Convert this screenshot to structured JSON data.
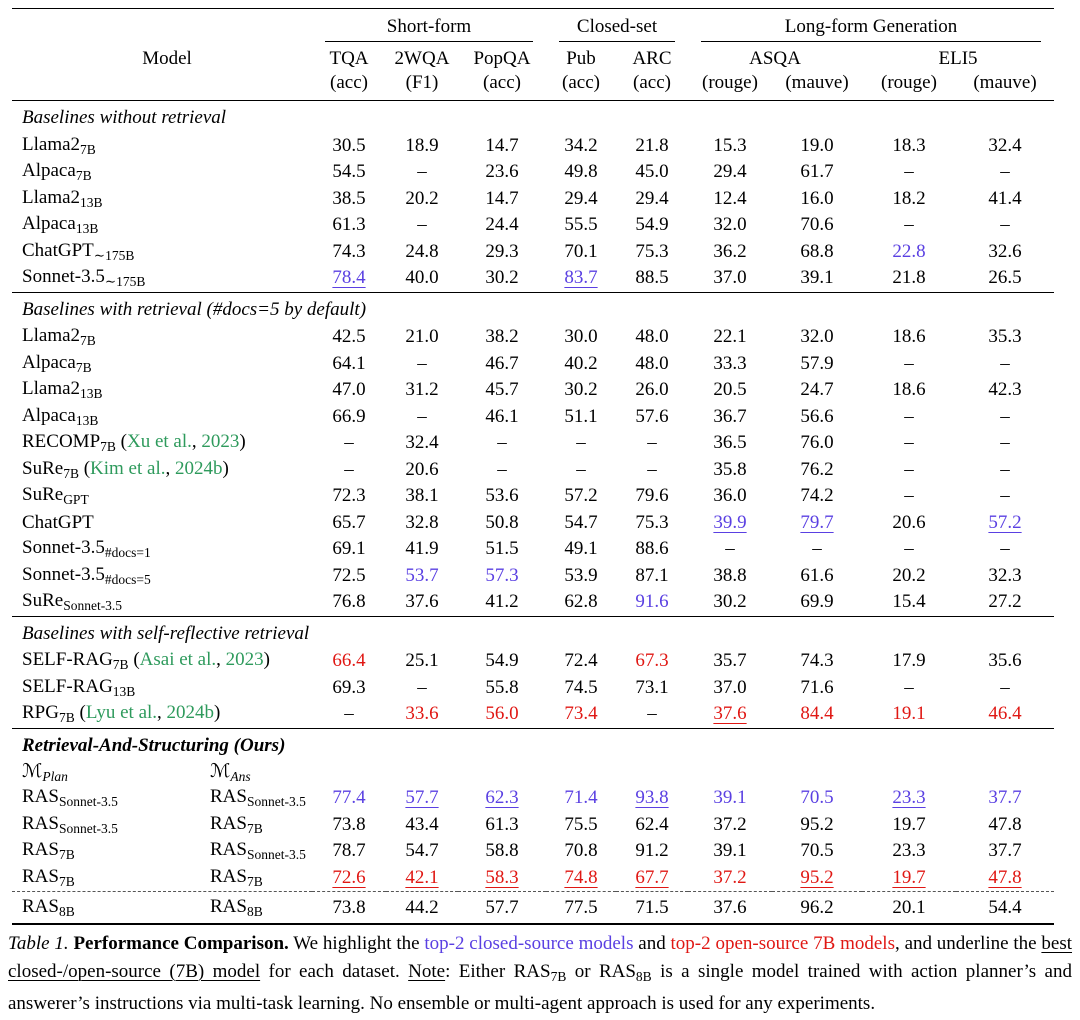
{
  "colors": {
    "top2_closed": "#5a40e2",
    "top2_open": "#e01713",
    "citation": "#2e9a5c"
  },
  "header": {
    "model_label": "Model",
    "groups": [
      {
        "label": "Short-form",
        "span": 3
      },
      {
        "label": "Closed-set",
        "span": 2
      },
      {
        "label": "Long-form Generation",
        "span": 4
      }
    ],
    "columns": [
      {
        "name": "TQA",
        "span": 1,
        "metrics": [
          "(acc)"
        ]
      },
      {
        "name": "2WQA",
        "span": 1,
        "metrics": [
          "(F1)"
        ]
      },
      {
        "name": "PopQA",
        "span": 1,
        "metrics": [
          "(acc)"
        ]
      },
      {
        "name": "Pub",
        "span": 1,
        "metrics": [
          "(acc)"
        ]
      },
      {
        "name": "ARC",
        "span": 1,
        "metrics": [
          "(acc)"
        ]
      },
      {
        "name": "ASQA",
        "span": 2,
        "metrics": [
          "(rouge)",
          "(mauve)"
        ]
      },
      {
        "name": "ELI5",
        "span": 2,
        "metrics": [
          "(rouge)",
          "(mauve)"
        ]
      }
    ]
  },
  "sections": [
    {
      "title": [
        {
          "t": "Baselines without retrieval"
        }
      ],
      "rows": [
        {
          "model": [
            {
              "t": "Llama2"
            },
            {
              "t": "7B",
              "s": "sub"
            }
          ],
          "cells": [
            "30.5",
            "18.9",
            "14.7",
            "34.2",
            "21.8",
            "15.3",
            "19.0",
            "18.3",
            "32.4"
          ]
        },
        {
          "model": [
            {
              "t": "Alpaca"
            },
            {
              "t": "7B",
              "s": "sub"
            }
          ],
          "cells": [
            "54.5",
            "–",
            "23.6",
            "49.8",
            "45.0",
            "29.4",
            "61.7",
            "–",
            "–"
          ]
        },
        {
          "model": [
            {
              "t": "Llama2"
            },
            {
              "t": "13B",
              "s": "sub"
            }
          ],
          "cells": [
            "38.5",
            "20.2",
            "14.7",
            "29.4",
            "29.4",
            "12.4",
            "16.0",
            "18.2",
            "41.4"
          ]
        },
        {
          "model": [
            {
              "t": "Alpaca"
            },
            {
              "t": "13B",
              "s": "sub"
            }
          ],
          "cells": [
            "61.3",
            "–",
            "24.4",
            "55.5",
            "54.9",
            "32.0",
            "70.6",
            "–",
            "–"
          ]
        },
        {
          "model": [
            {
              "t": "ChatGPT"
            },
            {
              "t": "∼175B",
              "s": "sub"
            }
          ],
          "cells": [
            "74.3",
            "24.8",
            "29.3",
            "70.1",
            "75.3",
            "36.2",
            "68.8",
            {
              "v": "22.8",
              "c": "blue"
            },
            "32.6"
          ]
        },
        {
          "model": [
            {
              "t": "Sonnet-3.5"
            },
            {
              "t": "∼175B",
              "s": "sub"
            }
          ],
          "cells": [
            {
              "v": "78.4",
              "c": "blue",
              "u": true
            },
            "40.0",
            "30.2",
            {
              "v": "83.7",
              "c": "blue",
              "u": true
            },
            "88.5",
            "37.0",
            "39.1",
            "21.8",
            "26.5"
          ]
        }
      ]
    },
    {
      "title": [
        {
          "t": "Baselines with retrieval (#docs=5 by default)"
        }
      ],
      "rows": [
        {
          "model": [
            {
              "t": "Llama2"
            },
            {
              "t": "7B",
              "s": "sub"
            }
          ],
          "cells": [
            "42.5",
            "21.0",
            "38.2",
            "30.0",
            "48.0",
            "22.1",
            "32.0",
            "18.6",
            "35.3"
          ]
        },
        {
          "model": [
            {
              "t": "Alpaca"
            },
            {
              "t": "7B",
              "s": "sub"
            }
          ],
          "cells": [
            "64.1",
            "–",
            "46.7",
            "40.2",
            "48.0",
            "33.3",
            "57.9",
            "–",
            "–"
          ]
        },
        {
          "model": [
            {
              "t": "Llama2"
            },
            {
              "t": "13B",
              "s": "sub"
            }
          ],
          "cells": [
            "47.0",
            "31.2",
            "45.7",
            "30.2",
            "26.0",
            "20.5",
            "24.7",
            "18.6",
            "42.3"
          ]
        },
        {
          "model": [
            {
              "t": "Alpaca"
            },
            {
              "t": "13B",
              "s": "sub"
            }
          ],
          "cells": [
            "66.9",
            "–",
            "46.1",
            "51.1",
            "57.6",
            "36.7",
            "56.6",
            "–",
            "–"
          ]
        },
        {
          "model": [
            {
              "t": "RECOMP"
            },
            {
              "t": "7B",
              "s": "sub"
            },
            {
              "t": " ("
            },
            {
              "t": "Xu et al.",
              "s": "green"
            },
            {
              "t": ", "
            },
            {
              "t": "2023",
              "s": "green"
            },
            {
              "t": ")"
            }
          ],
          "cells": [
            "–",
            "32.4",
            "–",
            "–",
            "–",
            "36.5",
            "76.0",
            "–",
            "–"
          ]
        },
        {
          "model": [
            {
              "t": "SuRe"
            },
            {
              "t": "7B",
              "s": "sub"
            },
            {
              "t": " ("
            },
            {
              "t": "Kim et al.",
              "s": "green"
            },
            {
              "t": ", "
            },
            {
              "t": "2024b",
              "s": "green"
            },
            {
              "t": ")"
            }
          ],
          "cells": [
            "–",
            "20.6",
            "–",
            "–",
            "–",
            "35.8",
            "76.2",
            "–",
            "–"
          ]
        },
        {
          "model": [
            {
              "t": "SuRe"
            },
            {
              "t": "GPT",
              "s": "sub"
            }
          ],
          "cells": [
            "72.3",
            "38.1",
            "53.6",
            "57.2",
            "79.6",
            "36.0",
            "74.2",
            "–",
            "–"
          ]
        },
        {
          "model": [
            {
              "t": "ChatGPT"
            }
          ],
          "cells": [
            "65.7",
            "32.8",
            "50.8",
            "54.7",
            "75.3",
            {
              "v": "39.9",
              "c": "blue",
              "u": true
            },
            {
              "v": "79.7",
              "c": "blue",
              "u": true
            },
            "20.6",
            {
              "v": "57.2",
              "c": "blue",
              "u": true
            }
          ]
        },
        {
          "model": [
            {
              "t": "Sonnet-3.5"
            },
            {
              "t": "#docs=1",
              "s": "sub"
            }
          ],
          "cells": [
            "69.1",
            "41.9",
            "51.5",
            "49.1",
            "88.6",
            "–",
            "–",
            "–",
            "–"
          ]
        },
        {
          "model": [
            {
              "t": "Sonnet-3.5"
            },
            {
              "t": "#docs=5",
              "s": "sub"
            }
          ],
          "cells": [
            "72.5",
            {
              "v": "53.7",
              "c": "blue"
            },
            {
              "v": "57.3",
              "c": "blue"
            },
            "53.9",
            "87.1",
            "38.8",
            "61.6",
            "20.2",
            "32.3"
          ]
        },
        {
          "model": [
            {
              "t": "SuRe"
            },
            {
              "t": "Sonnet-3.5",
              "s": "sub"
            }
          ],
          "cells": [
            "76.8",
            "37.6",
            "41.2",
            "62.8",
            {
              "v": "91.6",
              "c": "blue"
            },
            "30.2",
            "69.9",
            "15.4",
            "27.2"
          ]
        }
      ]
    },
    {
      "title": [
        {
          "t": "Baselines with self-reflective retrieval"
        }
      ],
      "rows": [
        {
          "model": [
            {
              "t": "SELF-RAG"
            },
            {
              "t": "7B",
              "s": "sub"
            },
            {
              "t": " ("
            },
            {
              "t": "Asai et al.",
              "s": "green"
            },
            {
              "t": ", "
            },
            {
              "t": "2023",
              "s": "green"
            },
            {
              "t": ")"
            }
          ],
          "cells": [
            {
              "v": "66.4",
              "c": "red"
            },
            "25.1",
            "54.9",
            "72.4",
            {
              "v": "67.3",
              "c": "red"
            },
            "35.7",
            "74.3",
            "17.9",
            "35.6"
          ]
        },
        {
          "model": [
            {
              "t": "SELF-RAG"
            },
            {
              "t": "13B",
              "s": "sub"
            }
          ],
          "cells": [
            "69.3",
            "–",
            "55.8",
            "74.5",
            "73.1",
            "37.0",
            "71.6",
            "–",
            "–"
          ]
        },
        {
          "model": [
            {
              "t": "RPG"
            },
            {
              "t": "7B",
              "s": "sub"
            },
            {
              "t": " ("
            },
            {
              "t": "Lyu et al.",
              "s": "green"
            },
            {
              "t": ", "
            },
            {
              "t": "2024b",
              "s": "green"
            },
            {
              "t": ")"
            }
          ],
          "cells": [
            "–",
            {
              "v": "33.6",
              "c": "red"
            },
            {
              "v": "56.0",
              "c": "red"
            },
            {
              "v": "73.4",
              "c": "red"
            },
            "–",
            {
              "v": "37.6",
              "c": "red",
              "u": true
            },
            {
              "v": "84.4",
              "c": "red"
            },
            {
              "v": "19.1",
              "c": "red"
            },
            {
              "v": "46.4",
              "c": "red"
            }
          ]
        }
      ]
    },
    {
      "title": [
        {
          "t": "Retrieval-And-Structuring (Ours)"
        }
      ],
      "bold": true,
      "col_labels": {
        "plan": [
          {
            "t": "ℳ",
            "s": "scr"
          },
          {
            "t": "Plan",
            "s": "subi"
          }
        ],
        "ans": [
          {
            "t": "ℳ",
            "s": "scr"
          },
          {
            "t": "Ans",
            "s": "subi"
          }
        ]
      },
      "rows": [
        {
          "model": [
            {
              "t": "RAS"
            },
            {
              "t": "Sonnet-3.5",
              "s": "sub"
            }
          ],
          "model2": [
            {
              "t": "RAS"
            },
            {
              "t": "Sonnet-3.5",
              "s": "sub"
            }
          ],
          "cells": [
            {
              "v": "77.4",
              "c": "blue"
            },
            {
              "v": "57.7",
              "c": "blue",
              "u": true
            },
            {
              "v": "62.3",
              "c": "blue",
              "u": true
            },
            {
              "v": "71.4",
              "c": "blue"
            },
            {
              "v": "93.8",
              "c": "blue",
              "u": true
            },
            {
              "v": "39.1",
              "c": "blue"
            },
            {
              "v": "70.5",
              "c": "blue"
            },
            {
              "v": "23.3",
              "c": "blue",
              "u": true
            },
            {
              "v": "37.7",
              "c": "blue"
            }
          ]
        },
        {
          "model": [
            {
              "t": "RAS"
            },
            {
              "t": "Sonnet-3.5",
              "s": "sub"
            }
          ],
          "model2": [
            {
              "t": "RAS"
            },
            {
              "t": "7B",
              "s": "sub"
            }
          ],
          "cells": [
            "73.8",
            "43.4",
            "61.3",
            "75.5",
            "62.4",
            "37.2",
            "95.2",
            "19.7",
            "47.8"
          ]
        },
        {
          "model": [
            {
              "t": "RAS"
            },
            {
              "t": "7B",
              "s": "sub"
            }
          ],
          "model2": [
            {
              "t": "RAS"
            },
            {
              "t": "Sonnet-3.5",
              "s": "sub"
            }
          ],
          "cells": [
            "78.7",
            "54.7",
            "58.8",
            "70.8",
            "91.2",
            "39.1",
            "70.5",
            "23.3",
            "37.7"
          ]
        },
        {
          "model": [
            {
              "t": "RAS"
            },
            {
              "t": "7B",
              "s": "sub"
            }
          ],
          "model2": [
            {
              "t": "RAS"
            },
            {
              "t": "7B",
              "s": "sub"
            }
          ],
          "cells": [
            {
              "v": "72.6",
              "c": "red",
              "u": true
            },
            {
              "v": "42.1",
              "c": "red",
              "u": true
            },
            {
              "v": "58.3",
              "c": "red",
              "u": true
            },
            {
              "v": "74.8",
              "c": "red",
              "u": true
            },
            {
              "v": "67.7",
              "c": "red",
              "u": true
            },
            {
              "v": "37.2",
              "c": "red"
            },
            {
              "v": "95.2",
              "c": "red",
              "u": true
            },
            {
              "v": "19.7",
              "c": "red",
              "u": true
            },
            {
              "v": "47.8",
              "c": "red",
              "u": true
            }
          ]
        },
        {
          "model": [
            {
              "t": "RAS"
            },
            {
              "t": "8B",
              "s": "sub"
            }
          ],
          "model2": [
            {
              "t": "RAS"
            },
            {
              "t": "8B",
              "s": "sub"
            }
          ],
          "cells": [
            "73.8",
            "44.2",
            "57.7",
            "77.5",
            "71.5",
            "37.6",
            "96.2",
            "20.1",
            "54.4"
          ],
          "final": true
        }
      ]
    }
  ],
  "caption": [
    {
      "t": "Table 1.",
      "s": "i"
    },
    {
      "t": " "
    },
    {
      "t": "Performance Comparison.",
      "s": "b"
    },
    {
      "t": " We highlight the "
    },
    {
      "t": "top-2 closed-source models",
      "s": "blue"
    },
    {
      "t": " and "
    },
    {
      "t": "top-2 open-source 7B models",
      "s": "red"
    },
    {
      "t": ", and underline the "
    },
    {
      "t": "best closed-/open-source (7B) model",
      "s": "u"
    },
    {
      "t": " for each dataset. "
    },
    {
      "t": "Note",
      "s": "u"
    },
    {
      "t": ": Either RAS"
    },
    {
      "t": "7B",
      "s": "sub"
    },
    {
      "t": " or RAS"
    },
    {
      "t": "8B",
      "s": "sub"
    },
    {
      "t": " is a single model trained with action planner’s and answerer’s instructions via multi-task learning. No ensemble or multi-agent approach is used for any experiments."
    }
  ]
}
